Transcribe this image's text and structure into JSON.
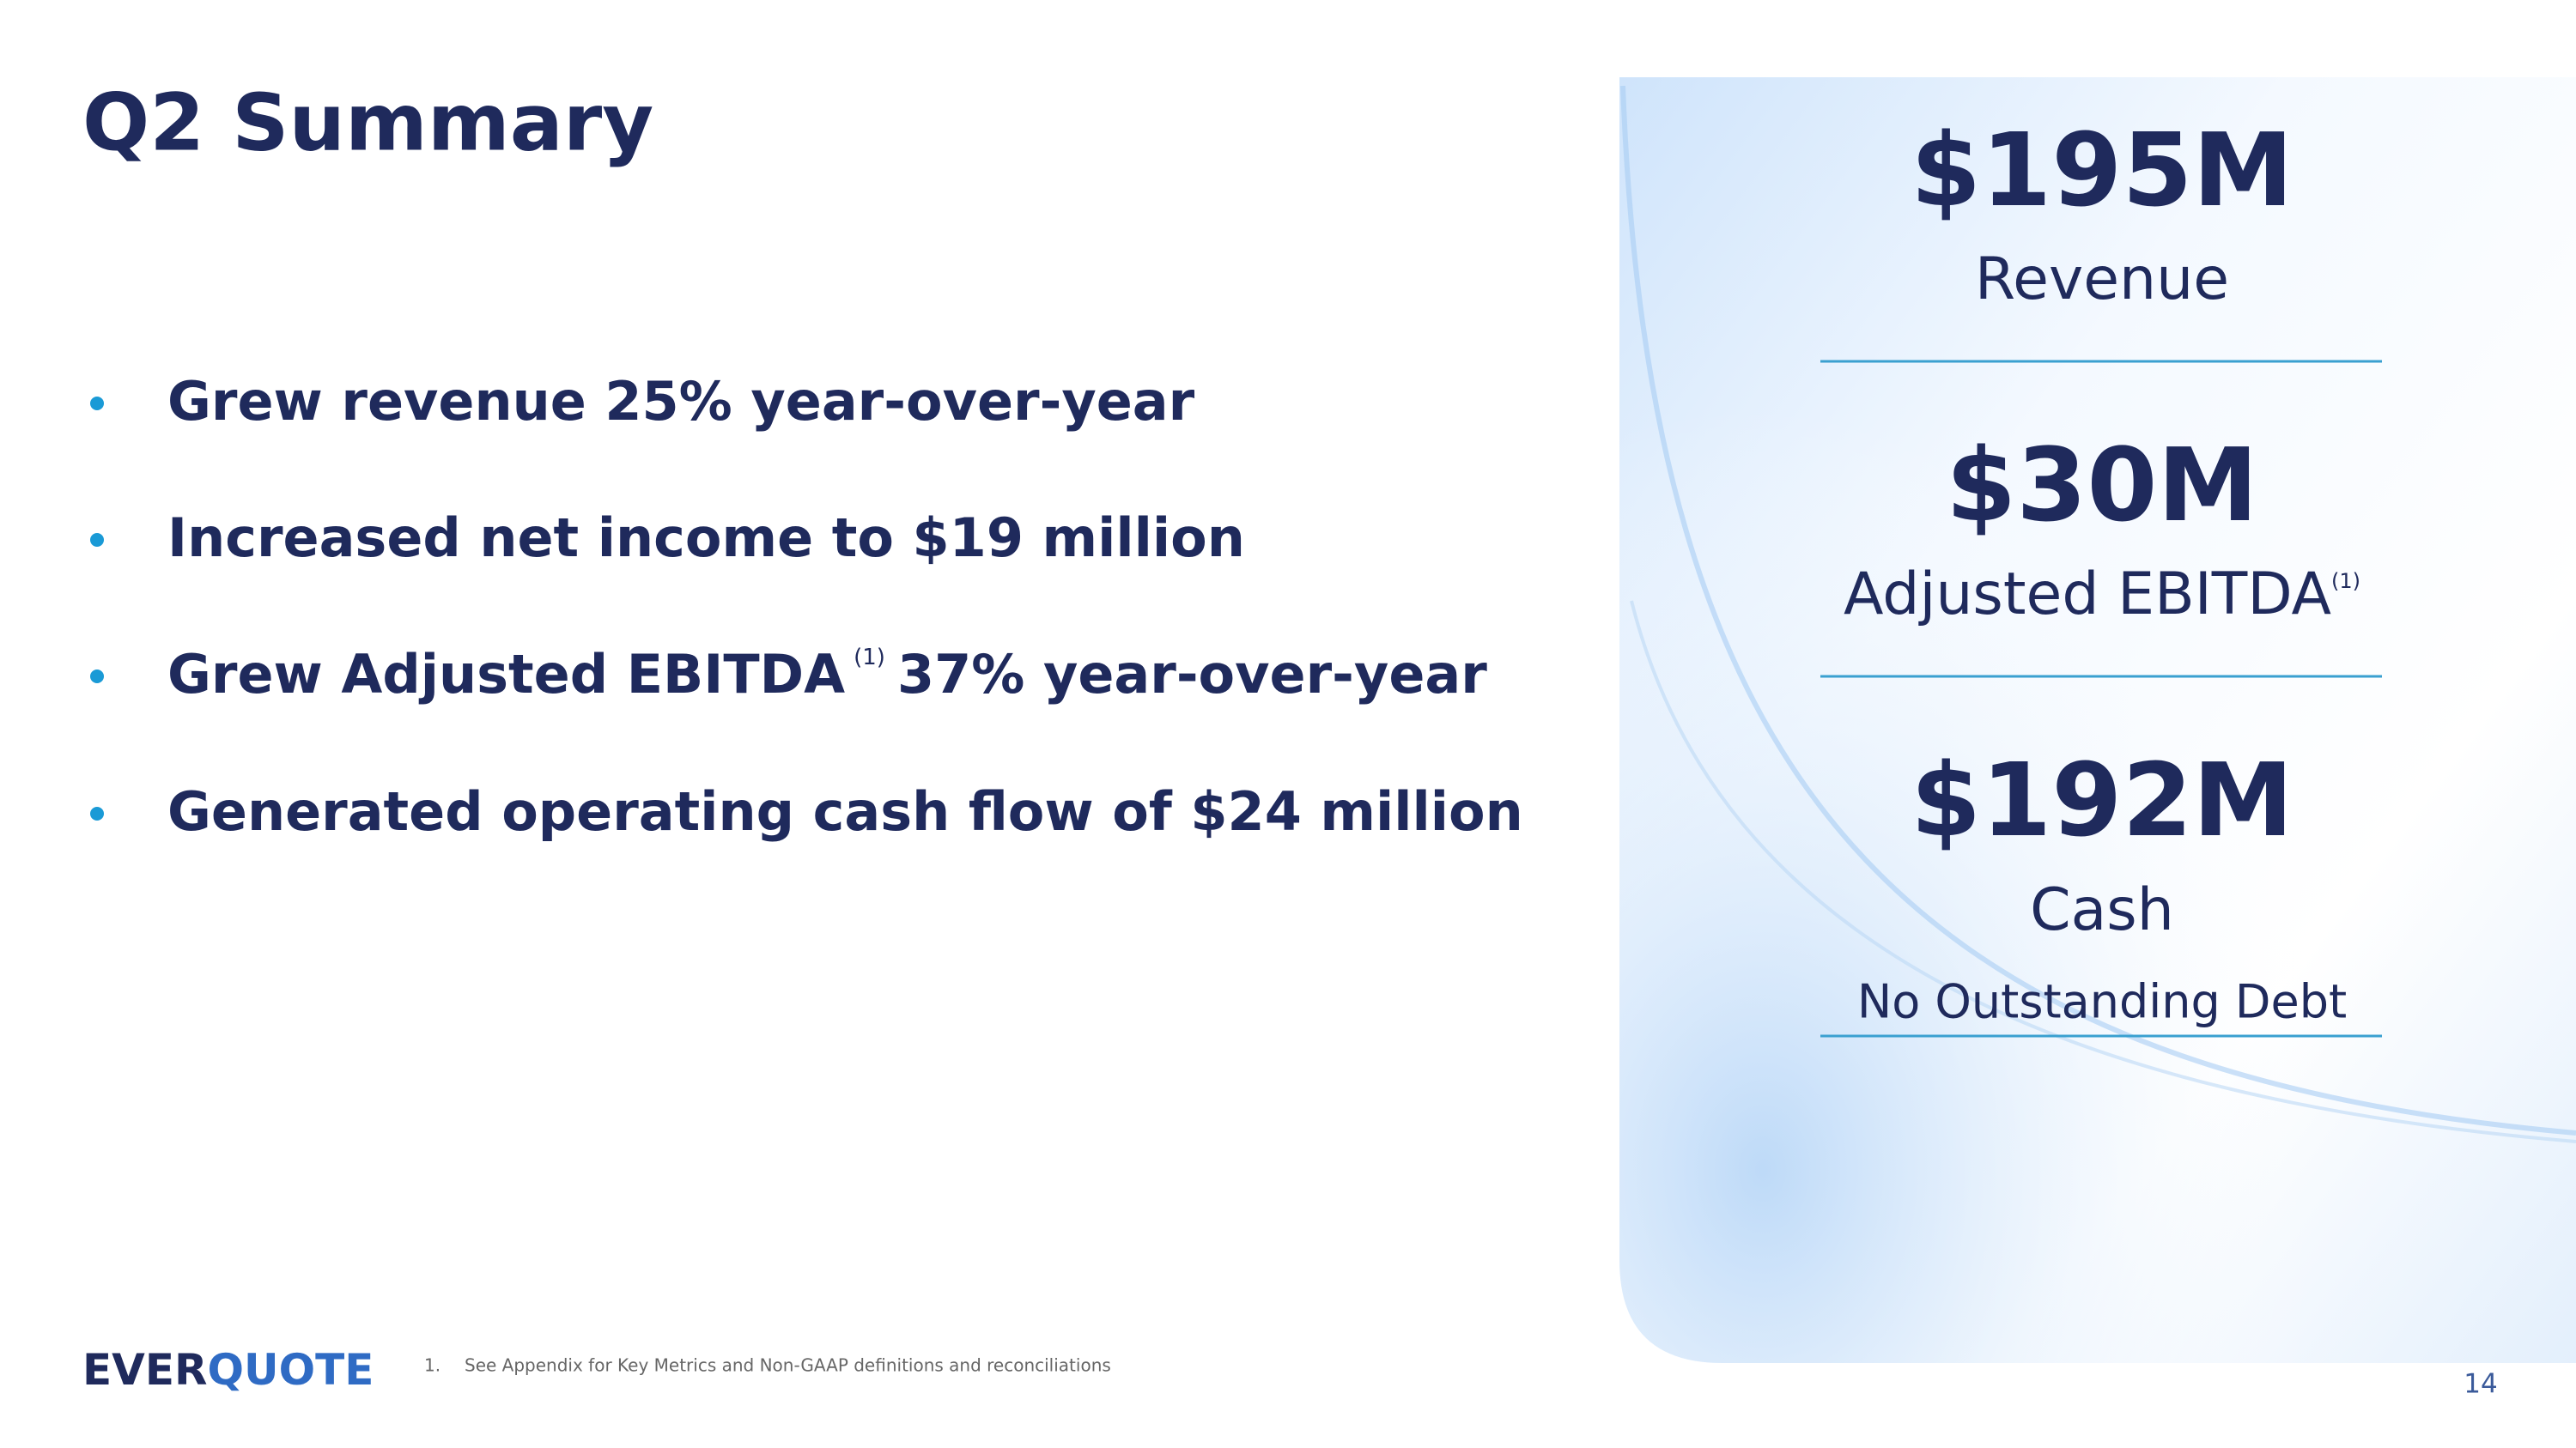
{
  "header": {
    "title": "Q2 Summary"
  },
  "bullets": [
    {
      "parts": [
        "Grew revenue 25% year-over-year"
      ]
    },
    {
      "parts": [
        "Increased net income to $19 million"
      ]
    },
    {
      "parts": [
        "Grew Adjusted EBITDA",
        "(1)",
        "37% year-over-year"
      ]
    },
    {
      "parts": [
        "Generated operating cash flow of $24 million"
      ]
    }
  ],
  "metrics": [
    {
      "value": "$195M",
      "label": "Revenue"
    },
    {
      "value": "$30M",
      "label": "Adjusted EBITDA",
      "note": "(1)"
    },
    {
      "value": "$192M",
      "label": "Cash",
      "sublabel": "No Outstanding Debt"
    }
  ],
  "footer": {
    "logo": [
      "EVER",
      "QUOTE"
    ],
    "footnote_number": "1.",
    "footnote": "See Appendix for Key Metrics and Non-GAAP definitions and reconciliations",
    "page": "14"
  }
}
